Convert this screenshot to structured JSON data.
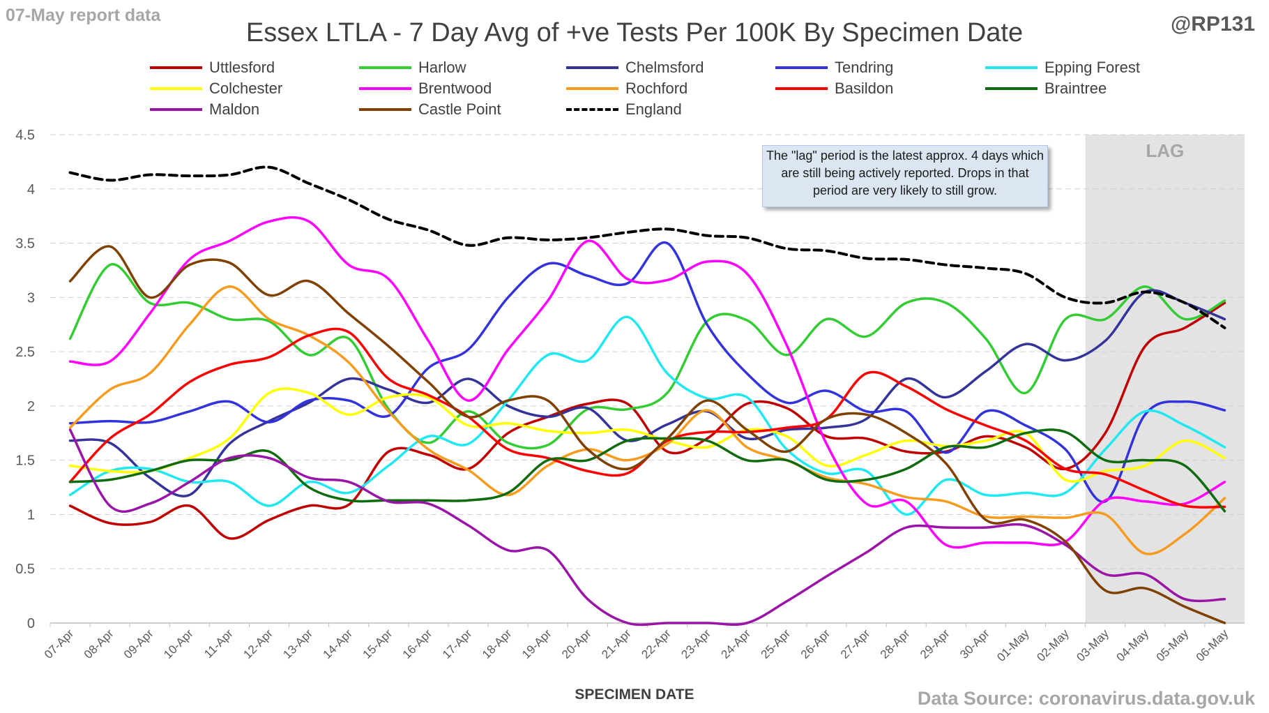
{
  "header": {
    "report_label": "07-May report data",
    "handle": "@RP131",
    "source": "Data Source: coronavirus.data.gov.uk"
  },
  "annotation": {
    "lag_label": "LAG",
    "note": "The \"lag\" period is the latest approx. 4 days which are still being actively reported. Drops in that period are very likely to still grow."
  },
  "chart_data": {
    "type": "line",
    "title": "Essex LTLA - 7 Day Avg of +ve Tests Per 100K By Specimen Date",
    "xlabel": "SPECIMEN DATE",
    "ylabel": "",
    "ylim": [
      0,
      4.5
    ],
    "yticks": [
      "0",
      "0.5",
      "1",
      "1.5",
      "2",
      "2.5",
      "3",
      "3.5",
      "4",
      "4.5"
    ],
    "grid": "horizontal dashed",
    "legend_position": "top",
    "lag_region": [
      "03-May",
      "06-May"
    ],
    "categories": [
      "07-Apr",
      "08-Apr",
      "09-Apr",
      "10-Apr",
      "11-Apr",
      "12-Apr",
      "13-Apr",
      "14-Apr",
      "15-Apr",
      "16-Apr",
      "17-Apr",
      "18-Apr",
      "19-Apr",
      "20-Apr",
      "21-Apr",
      "22-Apr",
      "23-Apr",
      "24-Apr",
      "25-Apr",
      "26-Apr",
      "27-Apr",
      "28-Apr",
      "29-Apr",
      "30-Apr",
      "01-May",
      "02-May",
      "03-May",
      "04-May",
      "05-May",
      "06-May"
    ],
    "series": [
      {
        "name": "Uttlesford",
        "color": "#c00000",
        "dash": false,
        "values": [
          1.08,
          0.92,
          0.93,
          1.08,
          0.78,
          0.95,
          1.08,
          1.09,
          1.58,
          1.55,
          1.42,
          1.75,
          1.9,
          2.02,
          2.02,
          1.58,
          1.7,
          2.02,
          1.98,
          1.72,
          1.7,
          1.58,
          1.58,
          1.72,
          1.62,
          1.42,
          1.75,
          2.55,
          2.72,
          2.95
        ]
      },
      {
        "name": "Harlow",
        "color": "#33cc33",
        "dash": false,
        "values": [
          2.62,
          3.3,
          2.95,
          2.95,
          2.8,
          2.78,
          2.47,
          2.62,
          1.97,
          1.66,
          1.95,
          1.66,
          1.64,
          1.97,
          1.97,
          2.12,
          2.78,
          2.79,
          2.47,
          2.8,
          2.64,
          2.95,
          2.95,
          2.62,
          2.12,
          2.8,
          2.8,
          3.1,
          2.8,
          2.97
        ]
      },
      {
        "name": "Chelmsford",
        "color": "#333399",
        "dash": false,
        "values": [
          1.68,
          1.66,
          1.34,
          1.18,
          1.65,
          1.86,
          2.03,
          2.25,
          2.15,
          2.03,
          2.25,
          2.0,
          1.9,
          1.98,
          1.68,
          1.83,
          1.95,
          1.7,
          1.78,
          1.8,
          1.88,
          2.25,
          2.08,
          2.32,
          2.57,
          2.42,
          2.6,
          3.05,
          2.95,
          2.8
        ]
      },
      {
        "name": "Tendring",
        "color": "#3333dd",
        "dash": false,
        "values": [
          1.84,
          1.86,
          1.85,
          1.95,
          2.04,
          1.85,
          2.05,
          2.05,
          1.91,
          2.35,
          2.52,
          3.0,
          3.31,
          3.2,
          3.13,
          3.5,
          2.75,
          2.3,
          2.03,
          2.14,
          1.95,
          1.95,
          1.57,
          1.95,
          1.82,
          1.6,
          1.12,
          1.92,
          2.04,
          1.96
        ]
      },
      {
        "name": "Epping Forest",
        "color": "#1fe8f0",
        "dash": false,
        "values": [
          1.18,
          1.4,
          1.42,
          1.3,
          1.3,
          1.08,
          1.3,
          1.2,
          1.45,
          1.72,
          1.65,
          2.05,
          2.47,
          2.42,
          2.82,
          2.3,
          2.07,
          2.08,
          1.6,
          1.38,
          1.4,
          1.0,
          1.32,
          1.18,
          1.2,
          1.2,
          1.6,
          1.95,
          1.82,
          1.62
        ]
      },
      {
        "name": "Colchester",
        "color": "#ffff00",
        "dash": false,
        "values": [
          1.45,
          1.4,
          1.4,
          1.52,
          1.7,
          2.12,
          2.12,
          1.92,
          2.08,
          2.08,
          1.82,
          1.84,
          1.77,
          1.75,
          1.78,
          1.68,
          1.62,
          1.78,
          1.72,
          1.45,
          1.55,
          1.68,
          1.63,
          1.68,
          1.75,
          1.32,
          1.4,
          1.45,
          1.68,
          1.52
        ]
      },
      {
        "name": "Brentwood",
        "color": "#ff00ff",
        "dash": false,
        "values": [
          2.41,
          2.41,
          2.85,
          3.35,
          3.52,
          3.7,
          3.7,
          3.3,
          3.17,
          2.6,
          2.05,
          2.52,
          2.97,
          3.52,
          3.17,
          3.16,
          3.33,
          3.22,
          2.56,
          1.65,
          1.1,
          1.12,
          0.72,
          0.74,
          0.74,
          0.75,
          1.13,
          1.12,
          1.1,
          1.3
        ]
      },
      {
        "name": "Rochford",
        "color": "#f79b1e",
        "dash": false,
        "values": [
          1.8,
          2.15,
          2.3,
          2.75,
          3.1,
          2.8,
          2.65,
          2.4,
          1.95,
          1.6,
          1.41,
          1.18,
          1.45,
          1.6,
          1.5,
          1.65,
          1.96,
          1.62,
          1.5,
          1.34,
          1.28,
          1.16,
          1.12,
          0.98,
          0.98,
          0.97,
          1.0,
          0.64,
          0.82,
          1.15
        ]
      },
      {
        "name": "Basildon",
        "color": "#ff0000",
        "dash": false,
        "values": [
          1.3,
          1.7,
          1.92,
          2.22,
          2.38,
          2.45,
          2.65,
          2.68,
          2.25,
          2.1,
          1.9,
          1.6,
          1.52,
          1.4,
          1.38,
          1.68,
          1.76,
          1.76,
          1.8,
          1.88,
          2.3,
          2.18,
          1.97,
          1.82,
          1.68,
          1.42,
          1.37,
          1.22,
          1.08,
          1.07
        ]
      },
      {
        "name": "Braintree",
        "color": "#0e6b0e",
        "dash": false,
        "values": [
          1.3,
          1.32,
          1.4,
          1.5,
          1.5,
          1.58,
          1.25,
          1.13,
          1.13,
          1.13,
          1.13,
          1.2,
          1.5,
          1.5,
          1.68,
          1.7,
          1.68,
          1.5,
          1.5,
          1.32,
          1.32,
          1.42,
          1.62,
          1.62,
          1.75,
          1.76,
          1.5,
          1.5,
          1.45,
          1.03
        ]
      },
      {
        "name": "Maldon",
        "color": "#9a14a8",
        "dash": false,
        "values": [
          1.78,
          1.08,
          1.1,
          1.3,
          1.52,
          1.52,
          1.34,
          1.3,
          1.12,
          1.1,
          0.9,
          0.67,
          0.67,
          0.22,
          0.0,
          0.0,
          0.0,
          0.0,
          0.2,
          0.43,
          0.65,
          0.88,
          0.88,
          0.88,
          0.9,
          0.72,
          0.45,
          0.45,
          0.22,
          0.22
        ]
      },
      {
        "name": "Castle Point",
        "color": "#7f4000",
        "dash": false,
        "values": [
          3.15,
          3.47,
          3.0,
          3.3,
          3.32,
          3.02,
          3.15,
          2.85,
          2.55,
          2.22,
          1.9,
          2.05,
          2.05,
          1.6,
          1.42,
          1.7,
          2.05,
          1.78,
          1.58,
          1.88,
          1.92,
          1.75,
          1.47,
          0.95,
          0.95,
          0.75,
          0.3,
          0.32,
          0.15,
          0.0
        ]
      },
      {
        "name": "England",
        "color": "#000000",
        "dash": true,
        "values": [
          4.15,
          4.08,
          4.13,
          4.12,
          4.13,
          4.2,
          4.05,
          3.9,
          3.72,
          3.62,
          3.48,
          3.55,
          3.53,
          3.55,
          3.6,
          3.63,
          3.57,
          3.55,
          3.45,
          3.43,
          3.36,
          3.35,
          3.3,
          3.27,
          3.22,
          3.0,
          2.95,
          3.05,
          2.95,
          2.72
        ]
      }
    ]
  }
}
